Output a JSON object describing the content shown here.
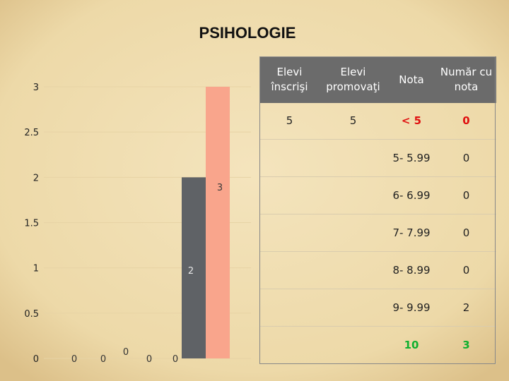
{
  "title": "PSIHOLOGIE",
  "chart_data": {
    "type": "bar",
    "title": "PSIHOLOGIE",
    "y_ticks": [
      "0",
      "0.5",
      "1",
      "1.5",
      "2",
      "2.5",
      "3"
    ],
    "ylim": [
      0,
      3
    ],
    "grid": false,
    "zero_labels": [
      "0",
      "0",
      "0",
      "0",
      "0"
    ],
    "series": [
      {
        "name": "",
        "value": 2,
        "label": "2",
        "color": "#5f6266"
      },
      {
        "name": "",
        "value": 3,
        "label": "3",
        "color": "#f9a58c"
      }
    ]
  },
  "table": {
    "headers": [
      "Elevi înscrişi",
      "Elevi promovaţi",
      "Nota",
      "Număr cu nota"
    ],
    "first_row": {
      "inscrisi": "5",
      "promovati": "5"
    },
    "rows": [
      {
        "nota": "< 5",
        "numar": "0",
        "style": "red"
      },
      {
        "nota": "5- 5.99",
        "numar": "0",
        "style": ""
      },
      {
        "nota": "6- 6.99",
        "numar": "0",
        "style": ""
      },
      {
        "nota": "7- 7.99",
        "numar": "0",
        "style": ""
      },
      {
        "nota": "8- 8.99",
        "numar": "0",
        "style": ""
      },
      {
        "nota": "9- 9.99",
        "numar": "2",
        "style": ""
      },
      {
        "nota": "10",
        "numar": "3",
        "style": "green"
      }
    ]
  }
}
